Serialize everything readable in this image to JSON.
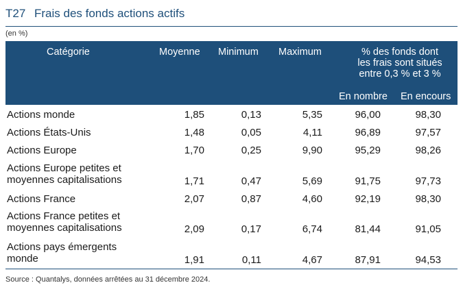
{
  "title": {
    "code": "T27",
    "text": "Frais des fonds actions actifs"
  },
  "unit": "(en %)",
  "headers": {
    "categorie": "Catégorie",
    "moyenne": "Moyenne",
    "minimum": "Minimum",
    "maximum": "Maximum",
    "pct_line1": "% des fonds dont",
    "pct_line2": "les frais sont situés",
    "pct_line3": "entre 0,3 % et 3 %",
    "en_nombre": "En nombre",
    "en_encours": "En encours"
  },
  "rows": [
    {
      "cat1": "Actions monde",
      "cat2": "",
      "moyenne": "1,85",
      "minimum": "0,13",
      "maximum": "5,35",
      "nombre": "96,00",
      "encours": "98,30"
    },
    {
      "cat1": "Actions États-Unis",
      "cat2": "",
      "moyenne": "1,48",
      "minimum": "0,05",
      "maximum": "4,11",
      "nombre": "96,89",
      "encours": "97,57"
    },
    {
      "cat1": "Actions Europe",
      "cat2": "",
      "moyenne": "1,70",
      "minimum": "0,25",
      "maximum": "9,90",
      "nombre": "95,29",
      "encours": "98,26"
    },
    {
      "cat1": "Actions Europe petites et",
      "cat2": "moyennes capitalisations",
      "moyenne": "1,71",
      "minimum": "0,47",
      "maximum": "5,69",
      "nombre": "91,75",
      "encours": "97,73"
    },
    {
      "cat1": "Actions France",
      "cat2": "",
      "moyenne": "2,07",
      "minimum": "0,87",
      "maximum": "4,60",
      "nombre": "92,19",
      "encours": "98,30"
    },
    {
      "cat1": "Actions France petites et",
      "cat2": "moyennes capitalisations",
      "moyenne": "2,09",
      "minimum": "0,17",
      "maximum": "6,74",
      "nombre": "81,44",
      "encours": "91,05"
    },
    {
      "cat1": "Actions pays émergents",
      "cat2": "monde",
      "moyenne": "1,91",
      "minimum": "0,11",
      "maximum": "4,67",
      "nombre": "87,91",
      "encours": "94,53"
    }
  ],
  "source": "Source : Quantalys, données arrêtées au 31 décembre 2024."
}
